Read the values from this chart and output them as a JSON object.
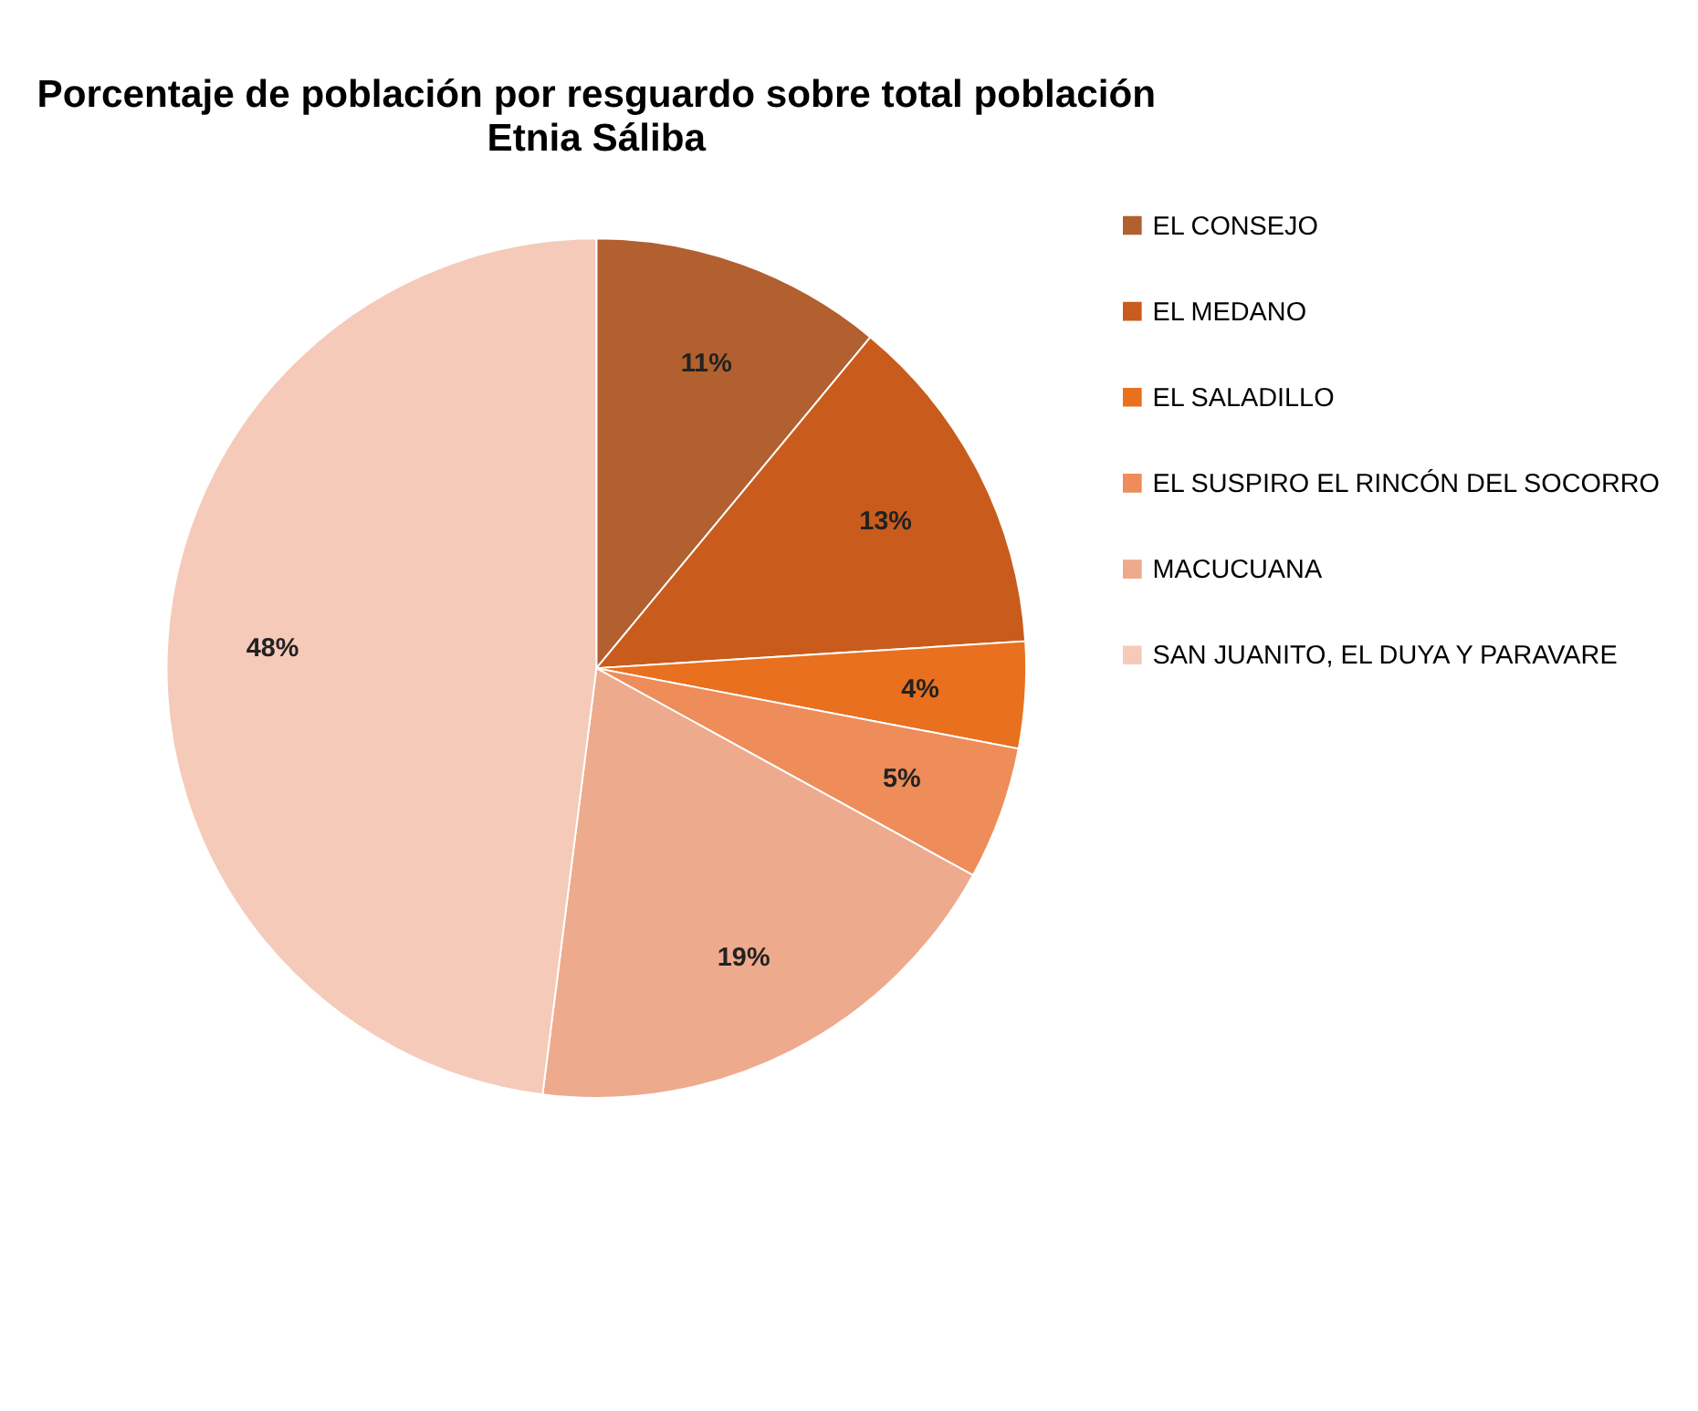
{
  "chart_data": {
    "type": "pie",
    "title": "Porcentaje de población por resguardo sobre total población",
    "subtitle": "Etnia Sáliba",
    "categories": [
      "EL CONSEJO",
      "EL MEDANO",
      "EL SALADILLO",
      "EL SUSPIRO EL RINCÓN DEL SOCORRO",
      "MACUCUANA",
      "SAN JUANITO, EL DUYA Y  PARAVARE"
    ],
    "values": [
      11,
      13,
      4,
      5,
      19,
      48
    ],
    "colors": [
      "#b2602f",
      "#c95c1c",
      "#e8701f",
      "#ee8c5a",
      "#eeaa8c",
      "#f5cab9"
    ],
    "value_labels": [
      "11%",
      "13%",
      "4%",
      "5%",
      "19%",
      "48%"
    ],
    "legend": "right"
  }
}
